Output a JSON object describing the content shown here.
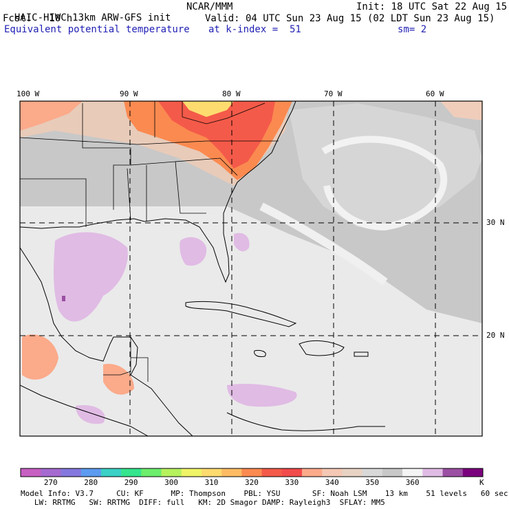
{
  "header": {
    "model_title": "HAIC-HIWC 13km ARW-GFS init",
    "org": "NCAR/MMM",
    "init": "Init: 18 UTC Sat 22 Aug 15",
    "fcst": "Fcst:   10 h",
    "valid": "Valid: 04 UTC Sun 23 Aug 15 (02 LDT Sun 23 Aug 15)",
    "field": "Equivalent potential temperature",
    "level": "at k-index =  51",
    "smoothing": "sm= 2"
  },
  "map": {
    "lon_labels": [
      "100 W",
      "90 W",
      "80 W",
      "70 W",
      "60 W"
    ],
    "lat_labels": [
      "30 N",
      "20 N"
    ],
    "background_color": "#cccccc",
    "land_outline_color": "#000000"
  },
  "colorbar": {
    "colors": [
      "#c75fc3",
      "#a46ad0",
      "#8477dd",
      "#5c9bf0",
      "#3ad0c5",
      "#35e58e",
      "#6cee6c",
      "#b6f15e",
      "#eff467",
      "#fedb6f",
      "#fdbc63",
      "#fb8a50",
      "#f45a49",
      "#f24b4b",
      "#fbaa8a",
      "#f4c8b4",
      "#e8d2c4",
      "#d8d8d8",
      "#c8c8c8",
      "#f4f4f4",
      "#e0bbe4",
      "#9b4fa3",
      "#7b007d"
    ],
    "tick_labels": [
      "270",
      "280",
      "290",
      "300",
      "310",
      "320",
      "330",
      "340",
      "350",
      "360"
    ],
    "unit": "K"
  },
  "footer": {
    "line1": "Model Info: V3.7     CU: KF      MP: Thompson    PBL: YSU       SF: Noah LSM    13 km    51 levels   60 sec",
    "line2": "   LW: RRTMG   SW: RRTMG  DIFF: full   KM: 2D Smagor DAMP: Rayleigh3  SFLAY: MM5"
  }
}
